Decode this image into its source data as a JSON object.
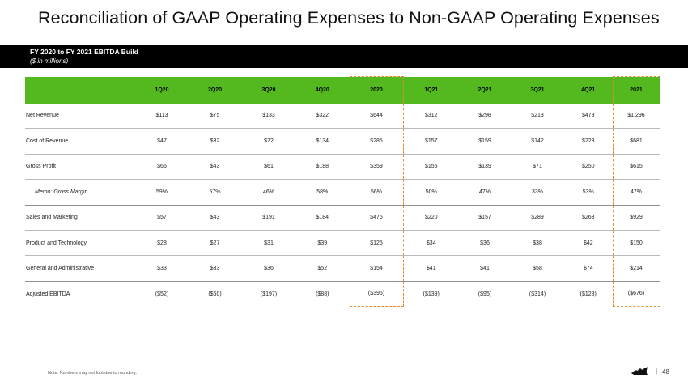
{
  "title": "Reconciliation of GAAP Operating Expenses to Non-GAAP Operating Expenses",
  "banner": {
    "heading": "FY 2020  to FY 2021  EBITDA Build",
    "subheading": "($ in millions)"
  },
  "table": {
    "columns": [
      "1Q20",
      "2Q20",
      "3Q20",
      "4Q20",
      "2020",
      "1Q21",
      "2Q21",
      "3Q21",
      "4Q21",
      "2021"
    ],
    "rows": [
      {
        "label": "Net Revenue",
        "values": [
          "$113",
          "$75",
          "$133",
          "$322",
          "$644",
          "$312",
          "$298",
          "$213",
          "$473",
          "$1,296"
        ]
      },
      {
        "label": "Cost of Revenue",
        "values": [
          "$47",
          "$32",
          "$72",
          "$134",
          "$285",
          "$157",
          "$159",
          "$142",
          "$223",
          "$681"
        ]
      },
      {
        "label": "Gross Profit",
        "values": [
          "$66",
          "$43",
          "$61",
          "$188",
          "$359",
          "$155",
          "$139",
          "$71",
          "$250",
          "$615"
        ]
      },
      {
        "label": "Memo: Gross Margin",
        "values": [
          "59%",
          "57%",
          "46%",
          "58%",
          "56%",
          "50%",
          "47%",
          "33%",
          "53%",
          "47%"
        ]
      },
      {
        "label": "Sales and Marketing",
        "values": [
          "$57",
          "$43",
          "$191",
          "$184",
          "$475",
          "$220",
          "$157",
          "$289",
          "$263",
          "$929"
        ]
      },
      {
        "label": "Product and Technology",
        "values": [
          "$28",
          "$27",
          "$31",
          "$39",
          "$125",
          "$34",
          "$36",
          "$38",
          "$42",
          "$150"
        ]
      },
      {
        "label": "General and Administrative",
        "values": [
          "$33",
          "$33",
          "$36",
          "$52",
          "$154",
          "$41",
          "$41",
          "$58",
          "$74",
          "$214"
        ]
      },
      {
        "label": "Adjusted EBITDA",
        "values": [
          "($52)",
          "($60)",
          "($197)",
          "($88)",
          "($396)",
          "($139)",
          "($95)",
          "($314)",
          "($128)",
          "($676)"
        ]
      }
    ]
  },
  "footer": {
    "note": "Note: Numbers may not foot due to rounding.",
    "separator": "|",
    "page_number": "48",
    "logo_icon": "crown-logo-icon"
  },
  "colors": {
    "header_green": "#53b91f",
    "highlight_orange": "#e8892e",
    "banner_black": "#000000"
  }
}
